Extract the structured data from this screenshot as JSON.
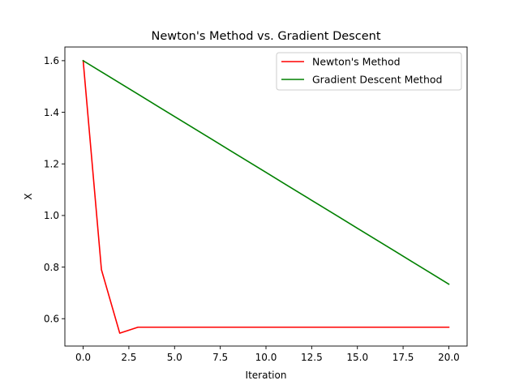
{
  "chart_data": {
    "type": "line",
    "title": "Newton's Method vs. Gradient Descent",
    "xlabel": "Iteration",
    "ylabel": "X",
    "xlim": [
      -1,
      21
    ],
    "ylim": [
      0.494,
      1.653
    ],
    "xticks": [
      0.0,
      2.5,
      5.0,
      7.5,
      10.0,
      12.5,
      15.0,
      17.5,
      20.0
    ],
    "xtick_labels": [
      "0.0",
      "2.5",
      "5.0",
      "7.5",
      "10.0",
      "12.5",
      "15.0",
      "17.5",
      "20.0"
    ],
    "yticks": [
      0.6,
      0.8,
      1.0,
      1.2,
      1.4,
      1.6
    ],
    "ytick_labels": [
      "0.6",
      "0.8",
      "1.0",
      "1.2",
      "1.4",
      "1.6"
    ],
    "grid": false,
    "legend": "top-right",
    "series": [
      {
        "name": "Newton's Method",
        "color": "#ff0000",
        "x": [
          0,
          1,
          2,
          3,
          4,
          5,
          6,
          7,
          8,
          9,
          10,
          11,
          12,
          13,
          14,
          15,
          16,
          17,
          18,
          19,
          20
        ],
        "y": [
          1.6,
          0.79,
          0.544,
          0.567,
          0.567,
          0.567,
          0.567,
          0.567,
          0.567,
          0.567,
          0.567,
          0.567,
          0.567,
          0.567,
          0.567,
          0.567,
          0.567,
          0.567,
          0.567,
          0.567,
          0.567
        ]
      },
      {
        "name": "Gradient Descent Method",
        "color": "#008000",
        "x": [
          0,
          1,
          2,
          3,
          4,
          5,
          6,
          7,
          8,
          9,
          10,
          11,
          12,
          13,
          14,
          15,
          16,
          17,
          18,
          19,
          20
        ],
        "y": [
          1.6,
          1.5567,
          1.5134,
          1.4701,
          1.4268,
          1.3835,
          1.3402,
          1.2969,
          1.2536,
          1.2103,
          1.167,
          1.1237,
          1.0804,
          1.0371,
          0.9938,
          0.9505,
          0.9072,
          0.8639,
          0.8206,
          0.7773,
          0.734
        ]
      }
    ]
  }
}
